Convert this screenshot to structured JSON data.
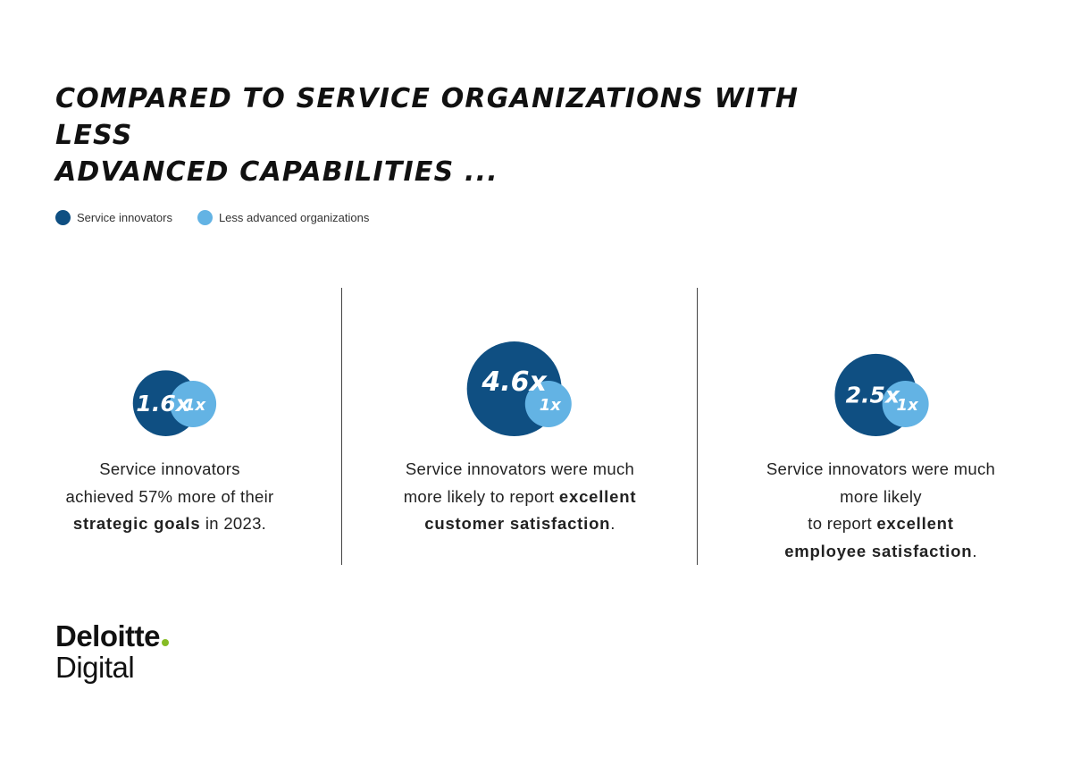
{
  "title": {
    "line1": "COMPARED TO SERVICE ORGANIZATIONS WITH LESS",
    "line2": "ADVANCED CAPABILITIES ..."
  },
  "colors": {
    "innovators": "#0f4f82",
    "less_advanced": "#63b3e4"
  },
  "chart_data": {
    "type": "bubble",
    "title": "COMPARED TO SERVICE ORGANIZATIONS WITH LESS ADVANCED CAPABILITIES ...",
    "legend": [
      {
        "name": "Service innovators",
        "color": "#0f4f82"
      },
      {
        "name": "Less advanced organizations",
        "color": "#63b3e4"
      }
    ],
    "legend_position": "top-left",
    "panels": [
      {
        "innovator_value": 1.6,
        "innovator_label": "1.6x",
        "baseline_value": 1,
        "baseline_label": "1x",
        "desc_line1": "Service innovators",
        "desc_line2": "achieved 57% more of their",
        "desc_bold": "strategic goals",
        "desc_tail": " in 2023."
      },
      {
        "innovator_value": 4.6,
        "innovator_label": "4.6x",
        "baseline_value": 1,
        "baseline_label": "1x",
        "desc_line1": "Service innovators were much",
        "desc_line2": "more likely to report ",
        "desc_bold1": "excellent",
        "desc_bold2": "customer satisfaction",
        "desc_tail": "."
      },
      {
        "innovator_value": 2.5,
        "innovator_label": "2.5x",
        "baseline_value": 1,
        "baseline_label": "1x",
        "desc_line1": "Service innovators were much",
        "desc_line2": "more likely",
        "desc_line3": "to report ",
        "desc_bold1": "excellent",
        "desc_bold2": "employee satisfaction",
        "desc_tail": "."
      }
    ]
  },
  "logo": {
    "line1": "Deloitte",
    "line2": "Digital"
  }
}
